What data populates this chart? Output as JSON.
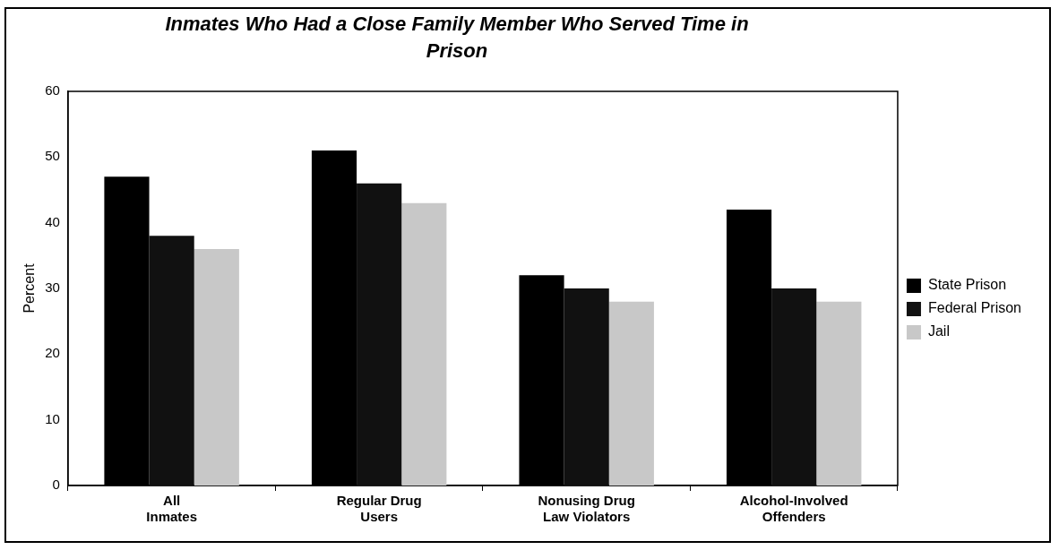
{
  "chart_data": {
    "type": "bar",
    "title": "Inmates Who Had a Close Family Member Who Served Time in Prison",
    "ylabel": "Percent",
    "categories": [
      "All Inmates",
      "Regular Drug Users",
      "Nonusing Drug Law Violators",
      "Alcohol-Involved Offenders"
    ],
    "series": [
      {
        "name": "State Prison",
        "color": "#000000",
        "values": [
          47,
          51,
          32,
          42
        ]
      },
      {
        "name": "Federal Prison",
        "color": "#111111",
        "values": [
          38,
          46,
          30,
          30
        ]
      },
      {
        "name": "Jail",
        "color": "#c8c8c8",
        "values": [
          36,
          43,
          28,
          28
        ]
      }
    ],
    "ylim": [
      0,
      60
    ],
    "yticks": [
      0,
      10,
      20,
      30,
      40,
      50,
      60
    ],
    "grid": false,
    "legend": "right"
  }
}
